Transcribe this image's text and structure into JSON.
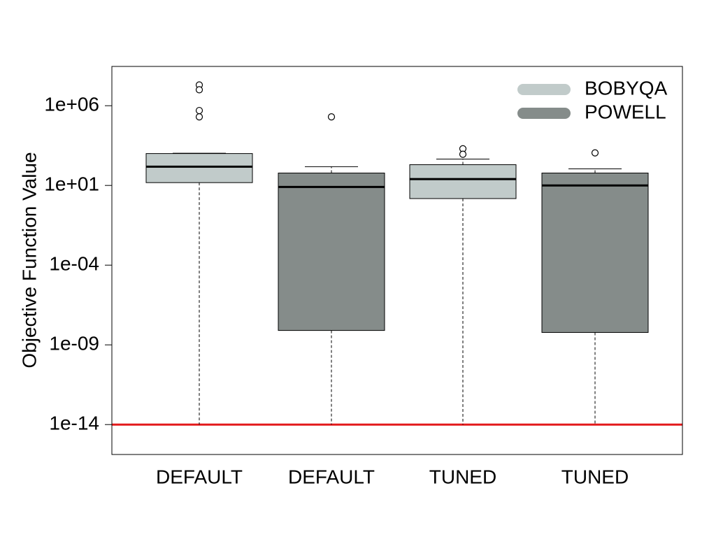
{
  "chart_data": {
    "type": "box",
    "title": "",
    "xlabel": "",
    "ylabel": "Objective Function Value",
    "y_scale": "log10",
    "ylim": [
      3e-15,
      30000000.0
    ],
    "y_ticks": [
      {
        "value": 1000000.0,
        "label": "1e+06"
      },
      {
        "value": 10.0,
        "label": "1e+01"
      },
      {
        "value": 0.0001,
        "label": "1e-04"
      },
      {
        "value": 1e-09,
        "label": "1e-09"
      },
      {
        "value": 1e-14,
        "label": "1e-14"
      }
    ],
    "categories": [
      "DEFAULT",
      "DEFAULT",
      "TUNED",
      "TUNED"
    ],
    "reference_line": {
      "value": 1e-14,
      "color": "#e31a1c"
    },
    "legend": {
      "position": "top-right",
      "entries": [
        {
          "label": "BOBYQA",
          "color": "#c1cbca"
        },
        {
          "label": "POWELL",
          "color": "#858c8a"
        }
      ]
    },
    "boxes": [
      {
        "category": "DEFAULT",
        "series": "BOBYQA",
        "color": "#c1cbca",
        "whisker_low": 1e-14,
        "q1": 15,
        "median": 150,
        "q3": 1000,
        "whisker_high": 1050,
        "outliers": [
          20000000,
          10000000,
          500000,
          200000
        ]
      },
      {
        "category": "DEFAULT",
        "series": "POWELL",
        "color": "#858c8a",
        "whisker_low": 1e-14,
        "q1": 8e-09,
        "median": 8,
        "q3": 60,
        "whisker_high": 150,
        "outliers": [
          200000
        ]
      },
      {
        "category": "TUNED",
        "series": "BOBYQA",
        "color": "#c1cbca",
        "whisker_low": 1e-14,
        "q1": 1.5,
        "median": 25,
        "q3": 200,
        "whisker_high": 450,
        "outliers": [
          2000,
          900
        ]
      },
      {
        "category": "TUNED",
        "series": "POWELL",
        "color": "#858c8a",
        "whisker_low": 1e-14,
        "q1": 6e-09,
        "median": 10,
        "q3": 60,
        "whisker_high": 110,
        "outliers": [
          1100
        ]
      }
    ]
  }
}
